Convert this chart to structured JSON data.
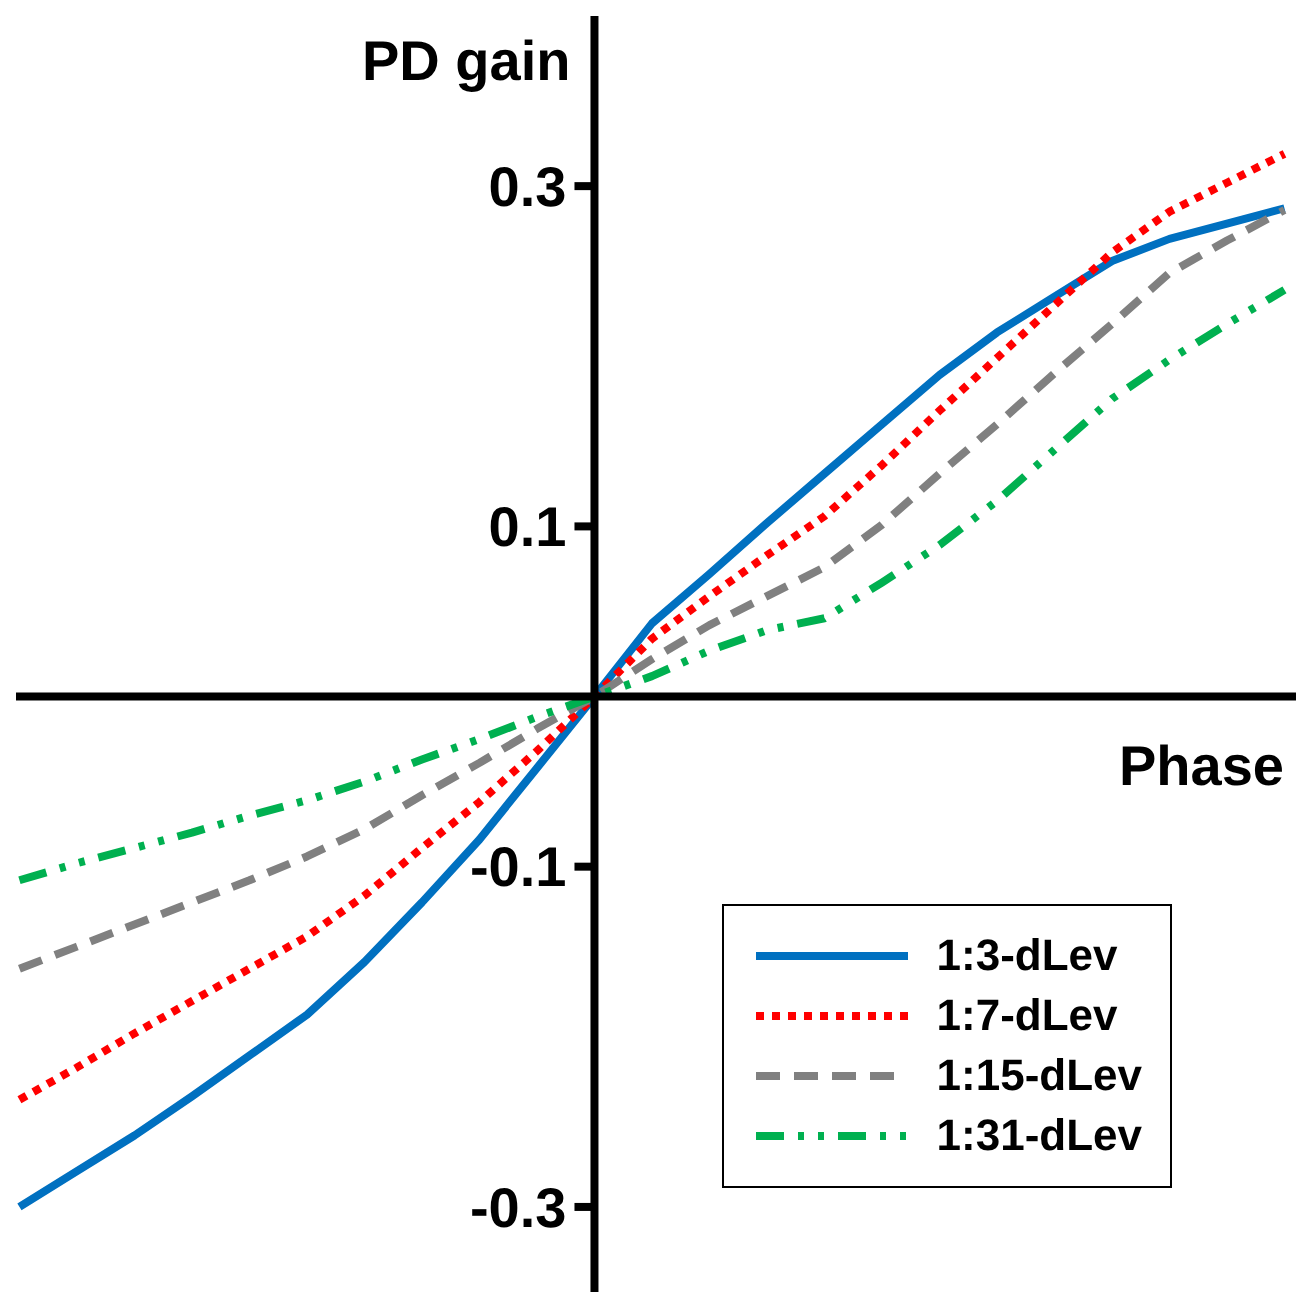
{
  "chart_data": {
    "type": "line",
    "xlabel": "Phase",
    "ylabel": "PD gain",
    "categories": [
      null,
      null,
      null,
      null,
      null,
      null,
      null,
      null,
      null,
      null,
      null,
      null,
      null,
      null,
      null,
      null,
      null,
      null,
      null,
      null,
      null,
      null,
      null
    ],
    "ylim": [
      -0.35,
      0.4
    ],
    "yticks": [
      0.3,
      0.1,
      -0.1,
      -0.3
    ],
    "tick_labels": "y",
    "grid": false,
    "legend": "bottom right",
    "marker": "none",
    "series": [
      {
        "name": "1:3-dLev",
        "color": "#0070c0",
        "line_style": "solid",
        "values": [
          -0.3,
          -0.279,
          -0.258,
          -0.235,
          -0.211,
          -0.187,
          -0.156,
          -0.121,
          -0.084,
          -0.042,
          0,
          0.043,
          0.072,
          0.102,
          0.131,
          0.16,
          0.189,
          0.214,
          0.235,
          0.256,
          0.269,
          0.278,
          0.287
        ]
      },
      {
        "name": "1:7-dLev",
        "color": "#ff0000",
        "line_style": "dotted",
        "values": [
          -0.237,
          -0.218,
          -0.198,
          -0.179,
          -0.16,
          -0.141,
          -0.117,
          -0.089,
          -0.062,
          -0.032,
          0,
          0.034,
          0.059,
          0.083,
          0.106,
          0.136,
          0.168,
          0.199,
          0.23,
          0.261,
          0.285,
          0.302,
          0.319
        ]
      },
      {
        "name": "1:15-dLev",
        "color": "#808080",
        "line_style": "dashed",
        "values": [
          -0.16,
          -0.147,
          -0.134,
          -0.121,
          -0.108,
          -0.094,
          -0.078,
          -0.058,
          -0.039,
          -0.019,
          0,
          0.022,
          0.042,
          0.059,
          0.076,
          0.101,
          0.131,
          0.16,
          0.19,
          0.219,
          0.249,
          0.268,
          0.286
        ]
      },
      {
        "name": "1:31-dLev",
        "color": "#00b050",
        "line_style": "dashdot",
        "values": [
          -0.108,
          -0.098,
          -0.089,
          -0.08,
          -0.07,
          -0.061,
          -0.05,
          -0.037,
          -0.025,
          -0.012,
          0,
          0.012,
          0.027,
          0.039,
          0.046,
          0.067,
          0.089,
          0.115,
          0.145,
          0.175,
          0.198,
          0.219,
          0.239
        ]
      }
    ]
  }
}
